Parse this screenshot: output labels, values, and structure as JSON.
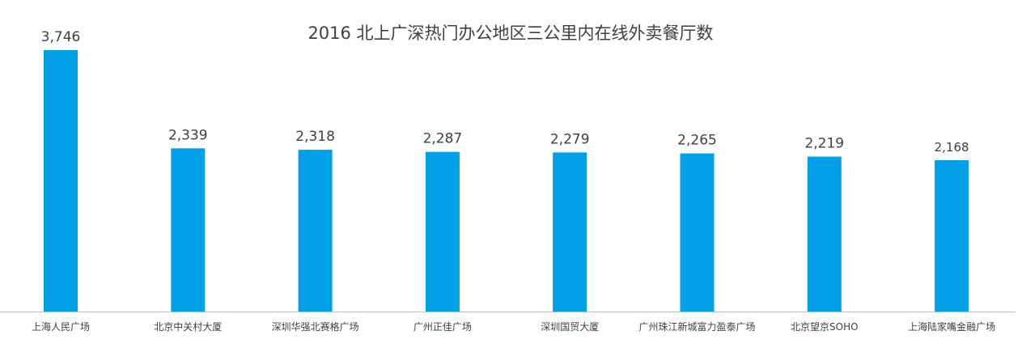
{
  "chart_data": {
    "type": "bar",
    "title": "2016 北上广深热门办公地区三公里内在线外卖餐厅数",
    "xlabel": "",
    "ylabel": "",
    "categories": [
      "上海人民广场",
      "北京中关村大厦",
      "深圳华强北赛格广场",
      "广州正佳广场",
      "深圳国贸大厦",
      "广州珠江新城富力盈泰广场",
      "北京望京SOHO",
      "上海陆家嘴金融广场"
    ],
    "values": [
      3746,
      2339,
      2318,
      2287,
      2279,
      2265,
      2219,
      2168
    ],
    "value_labels": [
      "3,746",
      "2,339",
      "2,318",
      "2,287",
      "2,279",
      "2,265",
      "2,219",
      "2,168"
    ],
    "ylim": [
      0,
      4000
    ],
    "grid": false,
    "legend": "none",
    "bar_color": "#00a0e9"
  }
}
